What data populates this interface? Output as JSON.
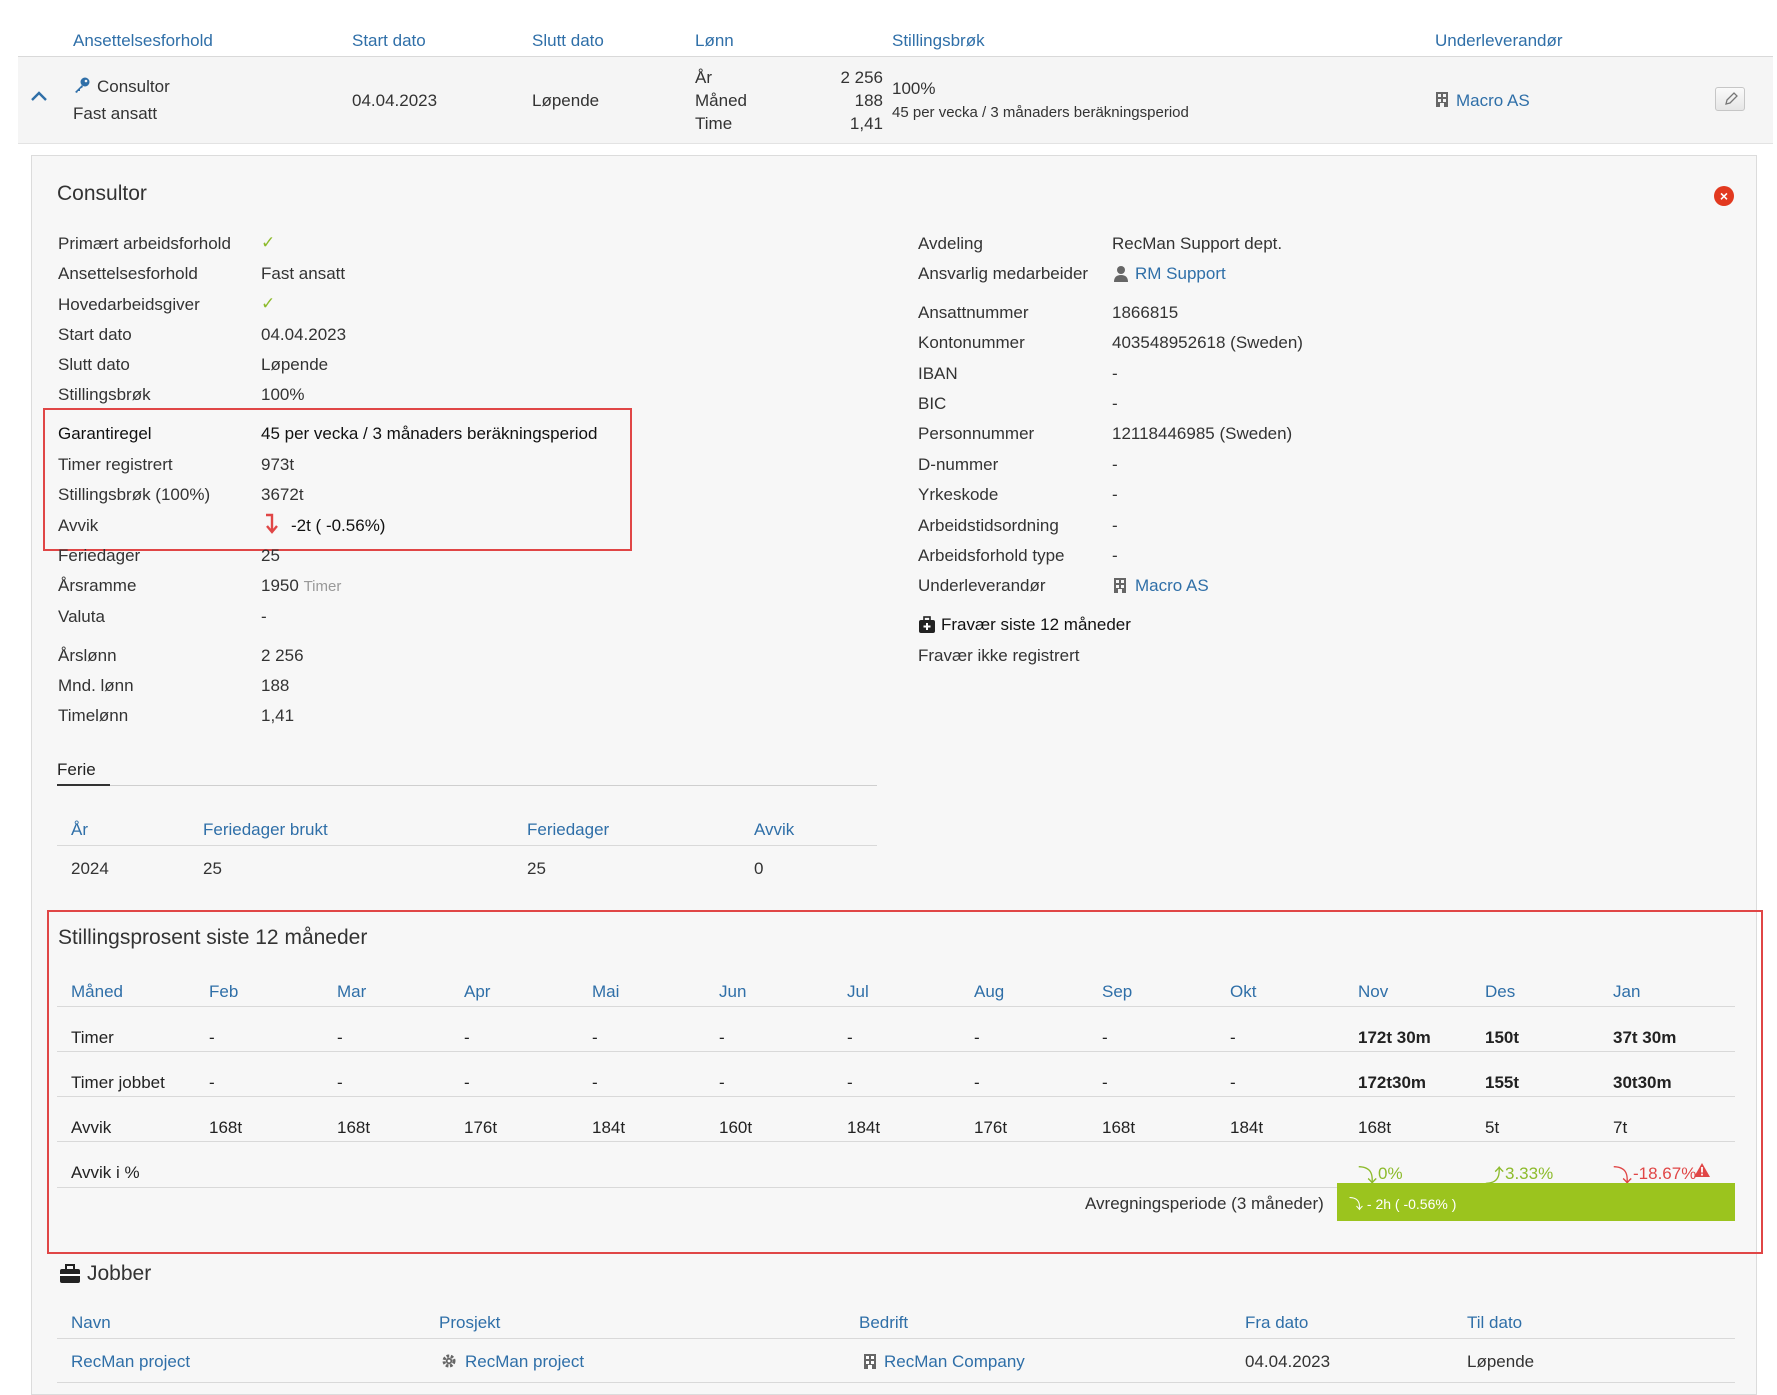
{
  "employment_table": {
    "headers": [
      "Ansettelsesforhold",
      "Start dato",
      "Slutt dato",
      "Lønn",
      "Stillingsbrøk",
      "Underleverandør"
    ],
    "row": {
      "title": "Consultor",
      "type": "Fast ansatt",
      "start": "04.04.2023",
      "end": "Løpende",
      "salary_labels": [
        "År",
        "Måned",
        "Time"
      ],
      "salary_values": [
        "2 256",
        "188",
        "1,41"
      ],
      "fraction": "100%",
      "rule": "45 per vecka / 3 månaders beräkningsperiod",
      "subcontractor": "Macro AS"
    }
  },
  "panel": {
    "title": "Consultor",
    "left": {
      "primaert_label": "Primært arbeidsforhold",
      "ansettelse_label": "Ansettelsesforhold",
      "ansettelse_value": "Fast ansatt",
      "hoved_label": "Hovedarbeidsgiver",
      "start_label": "Start dato",
      "start_value": "04.04.2023",
      "slutt_label": "Slutt dato",
      "slutt_value": "Løpende",
      "brok_label": "Stillingsbrøk",
      "brok_value": "100%",
      "garanti_label": "Garantiregel",
      "garanti_value": "45 per vecka / 3 månaders beräkningsperiod",
      "timer_label": "Timer registrert",
      "timer_value": "973t",
      "brok100_label": "Stillingsbrøk (100%)",
      "brok100_value": "3672t",
      "avvik_label": "Avvik",
      "avvik_value": "-2t ( -0.56%)",
      "ferie_label": "Feriedager",
      "ferie_value": "25",
      "arsramme_label": "Årsramme",
      "arsramme_value": "1950",
      "arsramme_unit": "Timer",
      "valuta_label": "Valuta",
      "valuta_value": "-",
      "arslonn_label": "Årslønn",
      "arslonn_value": "2 256",
      "mnd_label": "Mnd. lønn",
      "mnd_value": "188",
      "time_label": "Timelønn",
      "time_value": "1,41"
    },
    "right": {
      "avdeling_label": "Avdeling",
      "avdeling_value": "RecMan Support dept.",
      "ansvarlig_label": "Ansvarlig medarbeider",
      "ansvarlig_value": "RM Support",
      "ansattnr_label": "Ansattnummer",
      "ansattnr_value": "1866815",
      "konto_label": "Kontonummer",
      "konto_value": "403548952618 (Sweden)",
      "iban_label": "IBAN",
      "iban_value": "-",
      "bic_label": "BIC",
      "bic_value": "-",
      "person_label": "Personnummer",
      "person_value": "12118446985 (Sweden)",
      "dnr_label": "D-nummer",
      "dnr_value": "-",
      "yrke_label": "Yrkeskode",
      "yrke_value": "-",
      "arbtid_label": "Arbeidstidsordning",
      "arbtid_value": "-",
      "arbtype_label": "Arbeidsforhold type",
      "arbtype_value": "-",
      "under_label": "Underleverandør",
      "under_value": "Macro AS",
      "fravaer_title": "Fravær siste 12 måneder",
      "fravaer_text": "Fravær ikke registrert"
    },
    "ferie_tab": "Ferie",
    "ferie_table": {
      "headers": [
        "År",
        "Feriedager brukt",
        "Feriedager",
        "Avvik"
      ],
      "row": [
        "2024",
        "25",
        "25",
        "0"
      ]
    },
    "stilling": {
      "title": "Stillingsprosent siste 12 måneder",
      "header": [
        "Måned",
        "Feb",
        "Mar",
        "Apr",
        "Mai",
        "Jun",
        "Jul",
        "Aug",
        "Sep",
        "Okt",
        "Nov",
        "Des",
        "Jan"
      ],
      "timer": [
        "Timer",
        "-",
        "-",
        "-",
        "-",
        "-",
        "-",
        "-",
        "-",
        "-",
        "172t 30m",
        "150t",
        "37t 30m"
      ],
      "jobbet": [
        "Timer jobbet",
        "-",
        "-",
        "-",
        "-",
        "-",
        "-",
        "-",
        "-",
        "-",
        "172t30m",
        "155t",
        "30t30m"
      ],
      "avvik": [
        "Avvik",
        "168t",
        "168t",
        "176t",
        "184t",
        "160t",
        "184t",
        "176t",
        "168t",
        "184t",
        "168t",
        "5t",
        "7t"
      ],
      "avvik_pct_label": "Avvik i %",
      "avvik_pct": [
        "0%",
        "3.33%",
        "-18.67%"
      ],
      "period_label": "Avregningsperiode (3 måneder)",
      "period_value": "- 2h  ( -0.56% )"
    },
    "jobber": {
      "title": "Jobber",
      "headers": [
        "Navn",
        "Prosjekt",
        "Bedrift",
        "Fra dato",
        "Til dato"
      ],
      "row": [
        "RecMan project",
        "RecMan project",
        "RecMan Company",
        "04.04.2023",
        "Løpende"
      ]
    }
  }
}
